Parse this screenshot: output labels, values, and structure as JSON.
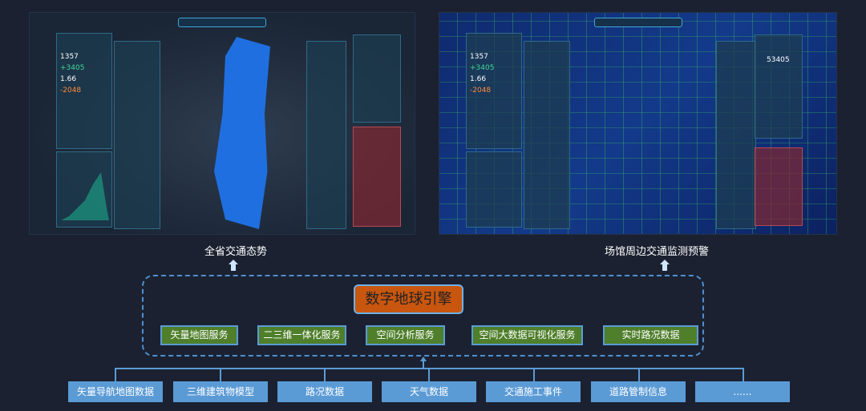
{
  "screens": {
    "left": {
      "label": "全省交通态势",
      "stats": [
        "1357",
        "+3405",
        "1.66",
        "-2048"
      ]
    },
    "right": {
      "label": "场馆周边交通监测预警",
      "stats": [
        "1357",
        "+3405",
        "1.66",
        "-2048",
        "53405"
      ]
    }
  },
  "engine": {
    "title": "数字地球引擎",
    "services": [
      "矢量地图服务",
      "二三维一体化服务",
      "空间分析服务",
      "空间大数据可视化服务",
      "实时路况数据"
    ]
  },
  "sources": [
    "矢量导航地图数据",
    "三维建筑物模型",
    "路况数据",
    "天气数据",
    "交通施工事件",
    "道路管制信息",
    "......"
  ],
  "colors": {
    "background": "#1b2130",
    "engine": "#c8560f",
    "service": "#4f7f2b",
    "source": "#5b9bd5",
    "dash": "#4f8fd0"
  }
}
